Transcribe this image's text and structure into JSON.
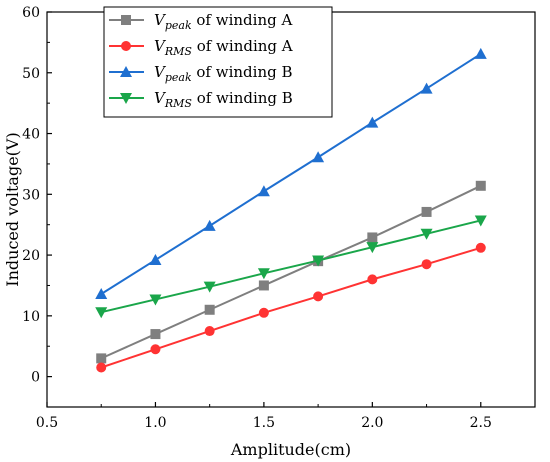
{
  "chart_data": {
    "type": "line",
    "x": [
      0.75,
      1.0,
      1.25,
      1.5,
      1.75,
      2.0,
      2.25,
      2.5
    ],
    "xlabel": "Amplitude(cm)",
    "ylabel": "Induced voltage(V)",
    "xlim": [
      0.5,
      2.75
    ],
    "ylim": [
      -5,
      60
    ],
    "xticks": [
      "0.5",
      "1.0",
      "1.5",
      "2.0",
      "2.5"
    ],
    "yticks": [
      "0",
      "10",
      "20",
      "30",
      "40",
      "50",
      "60"
    ],
    "grid": false,
    "legend_position": "top-left",
    "series": [
      {
        "name": "Vpeak of winding A",
        "var": "V",
        "sub": "peak",
        "rest": " of winding A",
        "color": "#7f7f7f",
        "marker": "square",
        "values": [
          3.0,
          7.0,
          11.0,
          15.0,
          19.0,
          22.9,
          27.1,
          31.4
        ]
      },
      {
        "name": "VRMS of winding A",
        "var": "V",
        "sub": "RMS",
        "rest": " of winding A",
        "color": "#ff3333",
        "marker": "circle",
        "values": [
          1.5,
          4.5,
          7.5,
          10.5,
          13.2,
          16.0,
          18.5,
          21.2
        ]
      },
      {
        "name": "Vpeak of winding B",
        "var": "V",
        "sub": "peak",
        "rest": " of winding B",
        "color": "#1f6fd0",
        "marker": "triangle-up",
        "values": [
          13.6,
          19.2,
          24.8,
          30.5,
          36.1,
          41.8,
          47.4,
          53.1
        ]
      },
      {
        "name": "VRMS of winding B",
        "var": "V",
        "sub": "RMS",
        "rest": " of winding B",
        "color": "#1aa64a",
        "marker": "triangle-down",
        "values": [
          10.6,
          12.7,
          14.8,
          17.0,
          19.1,
          21.3,
          23.5,
          25.7
        ]
      }
    ]
  }
}
